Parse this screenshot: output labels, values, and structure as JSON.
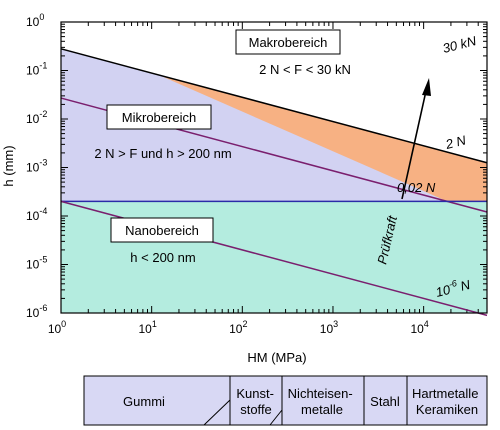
{
  "chart_data": {
    "type": "area",
    "x_scale": "log",
    "y_scale": "log",
    "xlim": [
      1,
      50000
    ],
    "ylim": [
      1e-06,
      1
    ],
    "xlabel": "HM (MPa)",
    "ylabel": "h (mm)",
    "x_ticks": [
      {
        "base": "10",
        "exp": "0"
      },
      {
        "base": "10",
        "exp": "1"
      },
      {
        "base": "10",
        "exp": "2"
      },
      {
        "base": "10",
        "exp": "3"
      },
      {
        "base": "10",
        "exp": "4"
      }
    ],
    "y_ticks": [
      {
        "base": "10",
        "exp": "0"
      },
      {
        "base": "10",
        "exp": "-1"
      },
      {
        "base": "10",
        "exp": "-2"
      },
      {
        "base": "10",
        "exp": "-3"
      },
      {
        "base": "10",
        "exp": "-4"
      },
      {
        "base": "10",
        "exp": "-5"
      },
      {
        "base": "10",
        "exp": "-6"
      }
    ],
    "lines": [
      {
        "name": "30 kN",
        "slope": -0.5,
        "h_at_x1": 0.28,
        "color": "#000000"
      },
      {
        "name": "2 N",
        "slope": -0.5,
        "h_at_x1": 0.027,
        "color": "#7a1f6e"
      },
      {
        "name": "0,02 N",
        "slope": 0,
        "h_at_x1": 0.0002,
        "color": "#2a2aa8"
      },
      {
        "name_base": "10",
        "name_exp": "-6",
        "name_unit": "N",
        "slope": -0.5,
        "h_at_x1": 0.0002,
        "color": "#7a1f6e"
      }
    ],
    "regions": [
      {
        "name": "Makrobereich",
        "condition": "2 N < F < 30 kN",
        "color": "#f7b183"
      },
      {
        "name": "Mikrobereich",
        "condition": "2 N > F und h > 200 nm",
        "color": "#d2d2f2"
      },
      {
        "name": "Nanobereich",
        "condition": "h < 200 nm",
        "color": "#b4ecdf"
      }
    ],
    "arrow_label": "Prüfkraft",
    "materials": {
      "fill": "#d8d8f4",
      "items": [
        "Gummi",
        "Kunst-|stoffe",
        "Nichteisen-|metalle",
        "Stahl",
        "Hartmetalle|Keramiken"
      ]
    }
  }
}
